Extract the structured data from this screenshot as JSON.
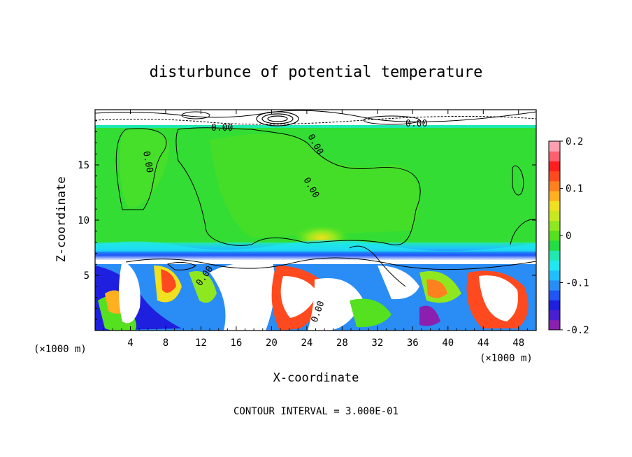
{
  "chart_data": {
    "type": "heatmap",
    "title": "disturbunce of potential temperature",
    "xlabel": "X-coordinate",
    "ylabel": "Z-coordinate",
    "x_unit": "(×1000 m)",
    "x_unit_right": "(×1000 m)",
    "contour_note": "CONTOUR INTERVAL = 3.000E-01",
    "contour_label": "0.00",
    "xlim": [
      0,
      50
    ],
    "ylim": [
      0,
      20
    ],
    "x_ticks": [
      4,
      8,
      12,
      16,
      20,
      24,
      28,
      32,
      36,
      40,
      44,
      48
    ],
    "y_ticks": [
      5,
      10,
      15
    ],
    "colorbar": {
      "range": [
        -0.2,
        0.2
      ],
      "tick_labels": [
        {
          "value": 0.2,
          "label": "0.2"
        },
        {
          "value": 0.1,
          "label": "0.1"
        },
        {
          "value": 0.0,
          "label": "0"
        },
        {
          "value": -0.1,
          "label": "-0.1"
        },
        {
          "value": -0.2,
          "label": "-0.2"
        }
      ],
      "colors": [
        "#8a1fb0",
        "#4a1fd0",
        "#1f1fe0",
        "#1f55f5",
        "#2a8cf5",
        "#20c0ff",
        "#20e8f0",
        "#20e8b0",
        "#22dd44",
        "#55e020",
        "#8fe81f",
        "#c8e81f",
        "#f0e01f",
        "#ffb01f",
        "#ff801f",
        "#ff4a1f",
        "#ff1f1f",
        "#ff6070",
        "#ffa0b0"
      ]
    },
    "layers": [
      {
        "z": [
          18.4,
          20
        ],
        "description_value": "strong mixed (contours dense)"
      },
      {
        "z": [
          7.2,
          18.4
        ],
        "value": 0.0
      },
      {
        "z": [
          6.4,
          7.2
        ],
        "value": -0.08
      },
      {
        "z": [
          0,
          6.4
        ],
        "value": "mixed -0.2 to 0.2"
      }
    ]
  }
}
